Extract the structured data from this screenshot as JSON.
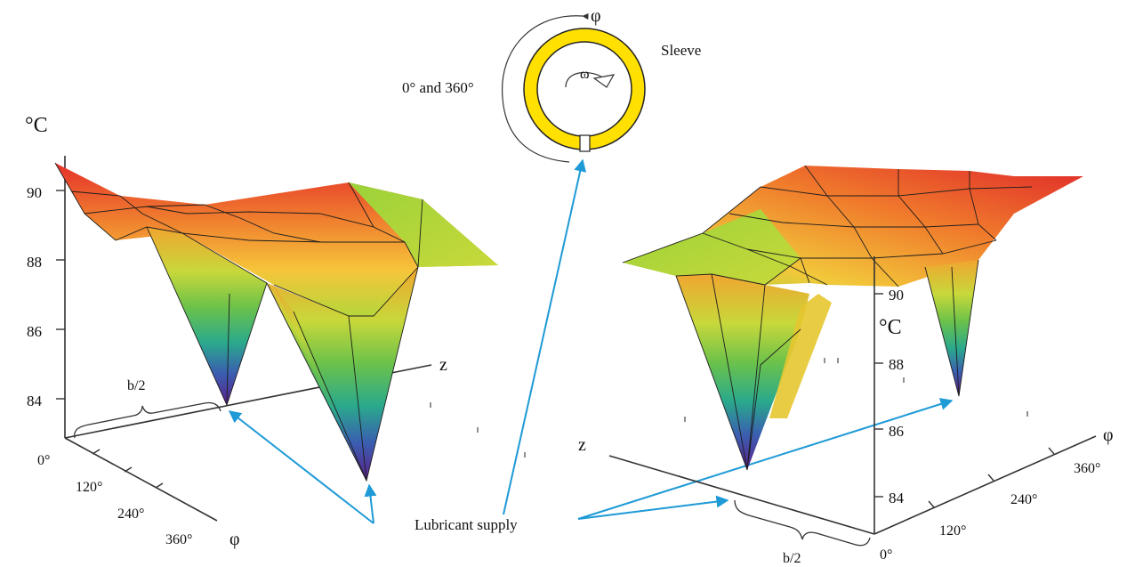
{
  "sleeve": {
    "phi_label": "φ",
    "omega_label": "ω",
    "angle_label": "0° and 360°",
    "name_label": "Sleeve",
    "ring_color": "#ffe000"
  },
  "left_plot": {
    "unit_label": "°C",
    "z_ticks": [
      "90",
      "88",
      "86",
      "84"
    ],
    "z_axis_label": "z",
    "b_label": "b/2",
    "phi_ticks": [
      "0°",
      "120°",
      "240°",
      "360°"
    ],
    "phi_label": "φ"
  },
  "right_plot": {
    "unit_label": "°C",
    "z_ticks": [
      "90",
      "88",
      "86",
      "84"
    ],
    "z_axis_label": "z",
    "b_label": "b/2",
    "phi_ticks": [
      "0°",
      "120°",
      "240°",
      "360°"
    ],
    "phi_label": "φ"
  },
  "lubricant_label": "Lubricant supply",
  "colors": {
    "arrow": "#1e9ad6",
    "hot": "#e8282a",
    "warm": "#f3b630",
    "mid": "#8fd43a",
    "cold": "#3b2a9a"
  }
}
